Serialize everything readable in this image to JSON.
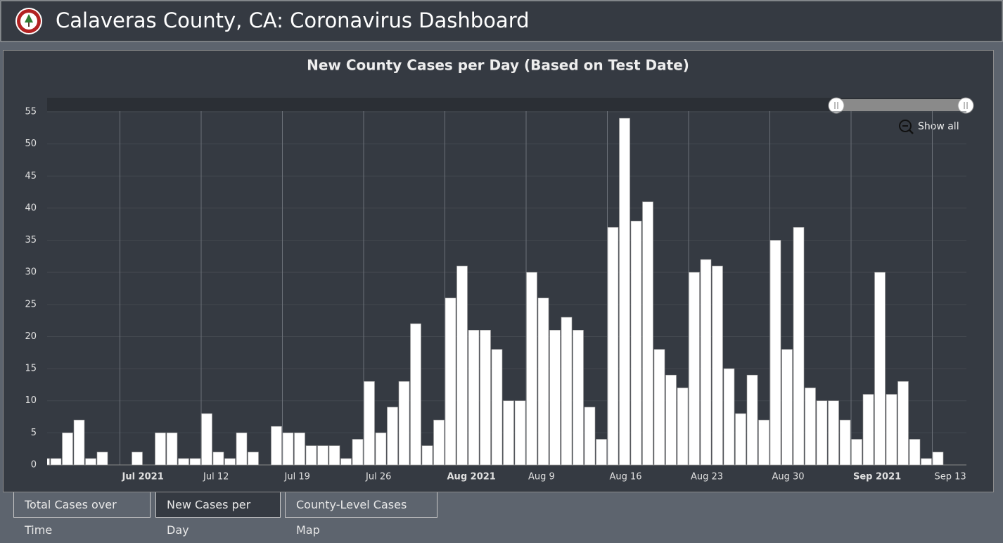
{
  "header": {
    "title": "Calaveras County, CA: Coronavirus Dashboard"
  },
  "tabs": [
    "Total Cases over Time",
    "New Cases per Day",
    "County-Level Cases Map"
  ],
  "chart_data": {
    "type": "bar",
    "title": "New County Cases per Day (Based on Test Date)",
    "zoom_button": "Show all",
    "categories": [
      null,
      null,
      null,
      null,
      null,
      null,
      null,
      "Jul 2021",
      null,
      null,
      null,
      null,
      null,
      null,
      "Jul 12",
      null,
      null,
      null,
      null,
      null,
      null,
      "Jul 19",
      null,
      null,
      null,
      null,
      null,
      null,
      "Jul 26",
      null,
      null,
      null,
      null,
      null,
      null,
      "Aug 2021",
      null,
      null,
      null,
      null,
      null,
      null,
      "Aug 9",
      null,
      null,
      null,
      null,
      null,
      null,
      "Aug 16",
      null,
      null,
      null,
      null,
      null,
      null,
      "Aug 23",
      null,
      null,
      null,
      null,
      null,
      null,
      "Aug 30",
      null,
      null,
      null,
      null,
      null,
      null,
      "Sep 2021",
      null,
      null,
      null,
      null,
      null,
      null,
      "Sep 13",
      null,
      null
    ],
    "values": [
      1,
      1,
      5,
      7,
      1,
      2,
      0,
      0,
      2,
      0,
      5,
      5,
      1,
      1,
      8,
      2,
      1,
      5,
      2,
      0,
      6,
      5,
      5,
      3,
      3,
      3,
      1,
      4,
      13,
      5,
      9,
      13,
      22,
      3,
      7,
      26,
      31,
      21,
      21,
      18,
      10,
      10,
      30,
      26,
      21,
      23,
      21,
      9,
      4,
      37,
      54,
      38,
      41,
      18,
      14,
      12,
      30,
      32,
      31,
      15,
      8,
      14,
      7,
      35,
      18,
      37,
      12,
      10,
      10,
      7,
      4,
      11,
      30,
      11,
      13,
      4,
      1,
      2,
      0,
      0
    ],
    "color": "#ffffff",
    "ylim": [
      0,
      55
    ],
    "yticks": [
      0,
      5,
      10,
      15,
      20,
      25,
      30,
      35,
      40,
      45,
      50,
      55
    ],
    "grid": true
  }
}
